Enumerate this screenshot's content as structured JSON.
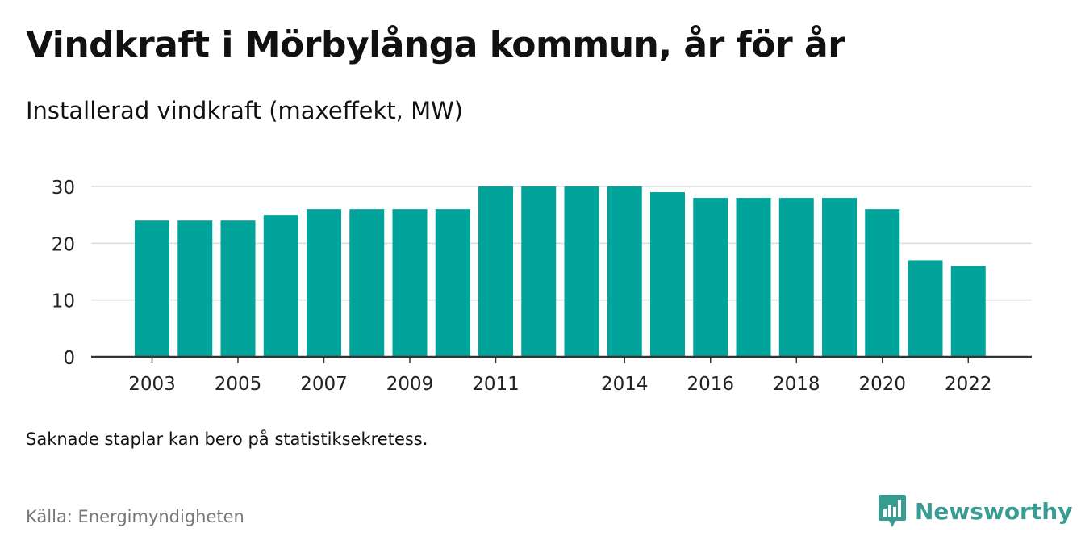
{
  "header": {
    "title": "Vindkraft i Mörbylånga kommun, år för år",
    "subtitle": "Installerad vindkraft (maxeffekt, MW)"
  },
  "footer": {
    "note": "Saknade staplar kan bero på statistiksekretess.",
    "source": "Källa: Energimyndigheten",
    "brand": "Newsworthy",
    "brand_icon": "newsworthy-logo-icon"
  },
  "colors": {
    "bar": "#00a49a",
    "grid": "#dddddd",
    "axis": "#333333",
    "brand": "#3a9b93"
  },
  "chart_data": {
    "type": "bar",
    "categories": [
      2003,
      2004,
      2005,
      2006,
      2007,
      2008,
      2009,
      2010,
      2011,
      2012,
      2013,
      2014,
      2015,
      2016,
      2017,
      2018,
      2019,
      2020,
      2021,
      2022
    ],
    "values": [
      24,
      24,
      24,
      25,
      26,
      26,
      26,
      26,
      30,
      30,
      30,
      30,
      29,
      28,
      28,
      28,
      28,
      26,
      17,
      16
    ],
    "x_tick_labels": [
      "2003",
      "2005",
      "2007",
      "2009",
      "2011",
      "2014",
      "2016",
      "2018",
      "2020",
      "2022"
    ],
    "y_ticks": [
      0,
      10,
      20,
      30
    ],
    "ylim": [
      0,
      30
    ],
    "title": "Vindkraft i Mörbylånga kommun, år för år",
    "ylabel": "",
    "xlabel": "",
    "grid": true,
    "legend": "none"
  }
}
